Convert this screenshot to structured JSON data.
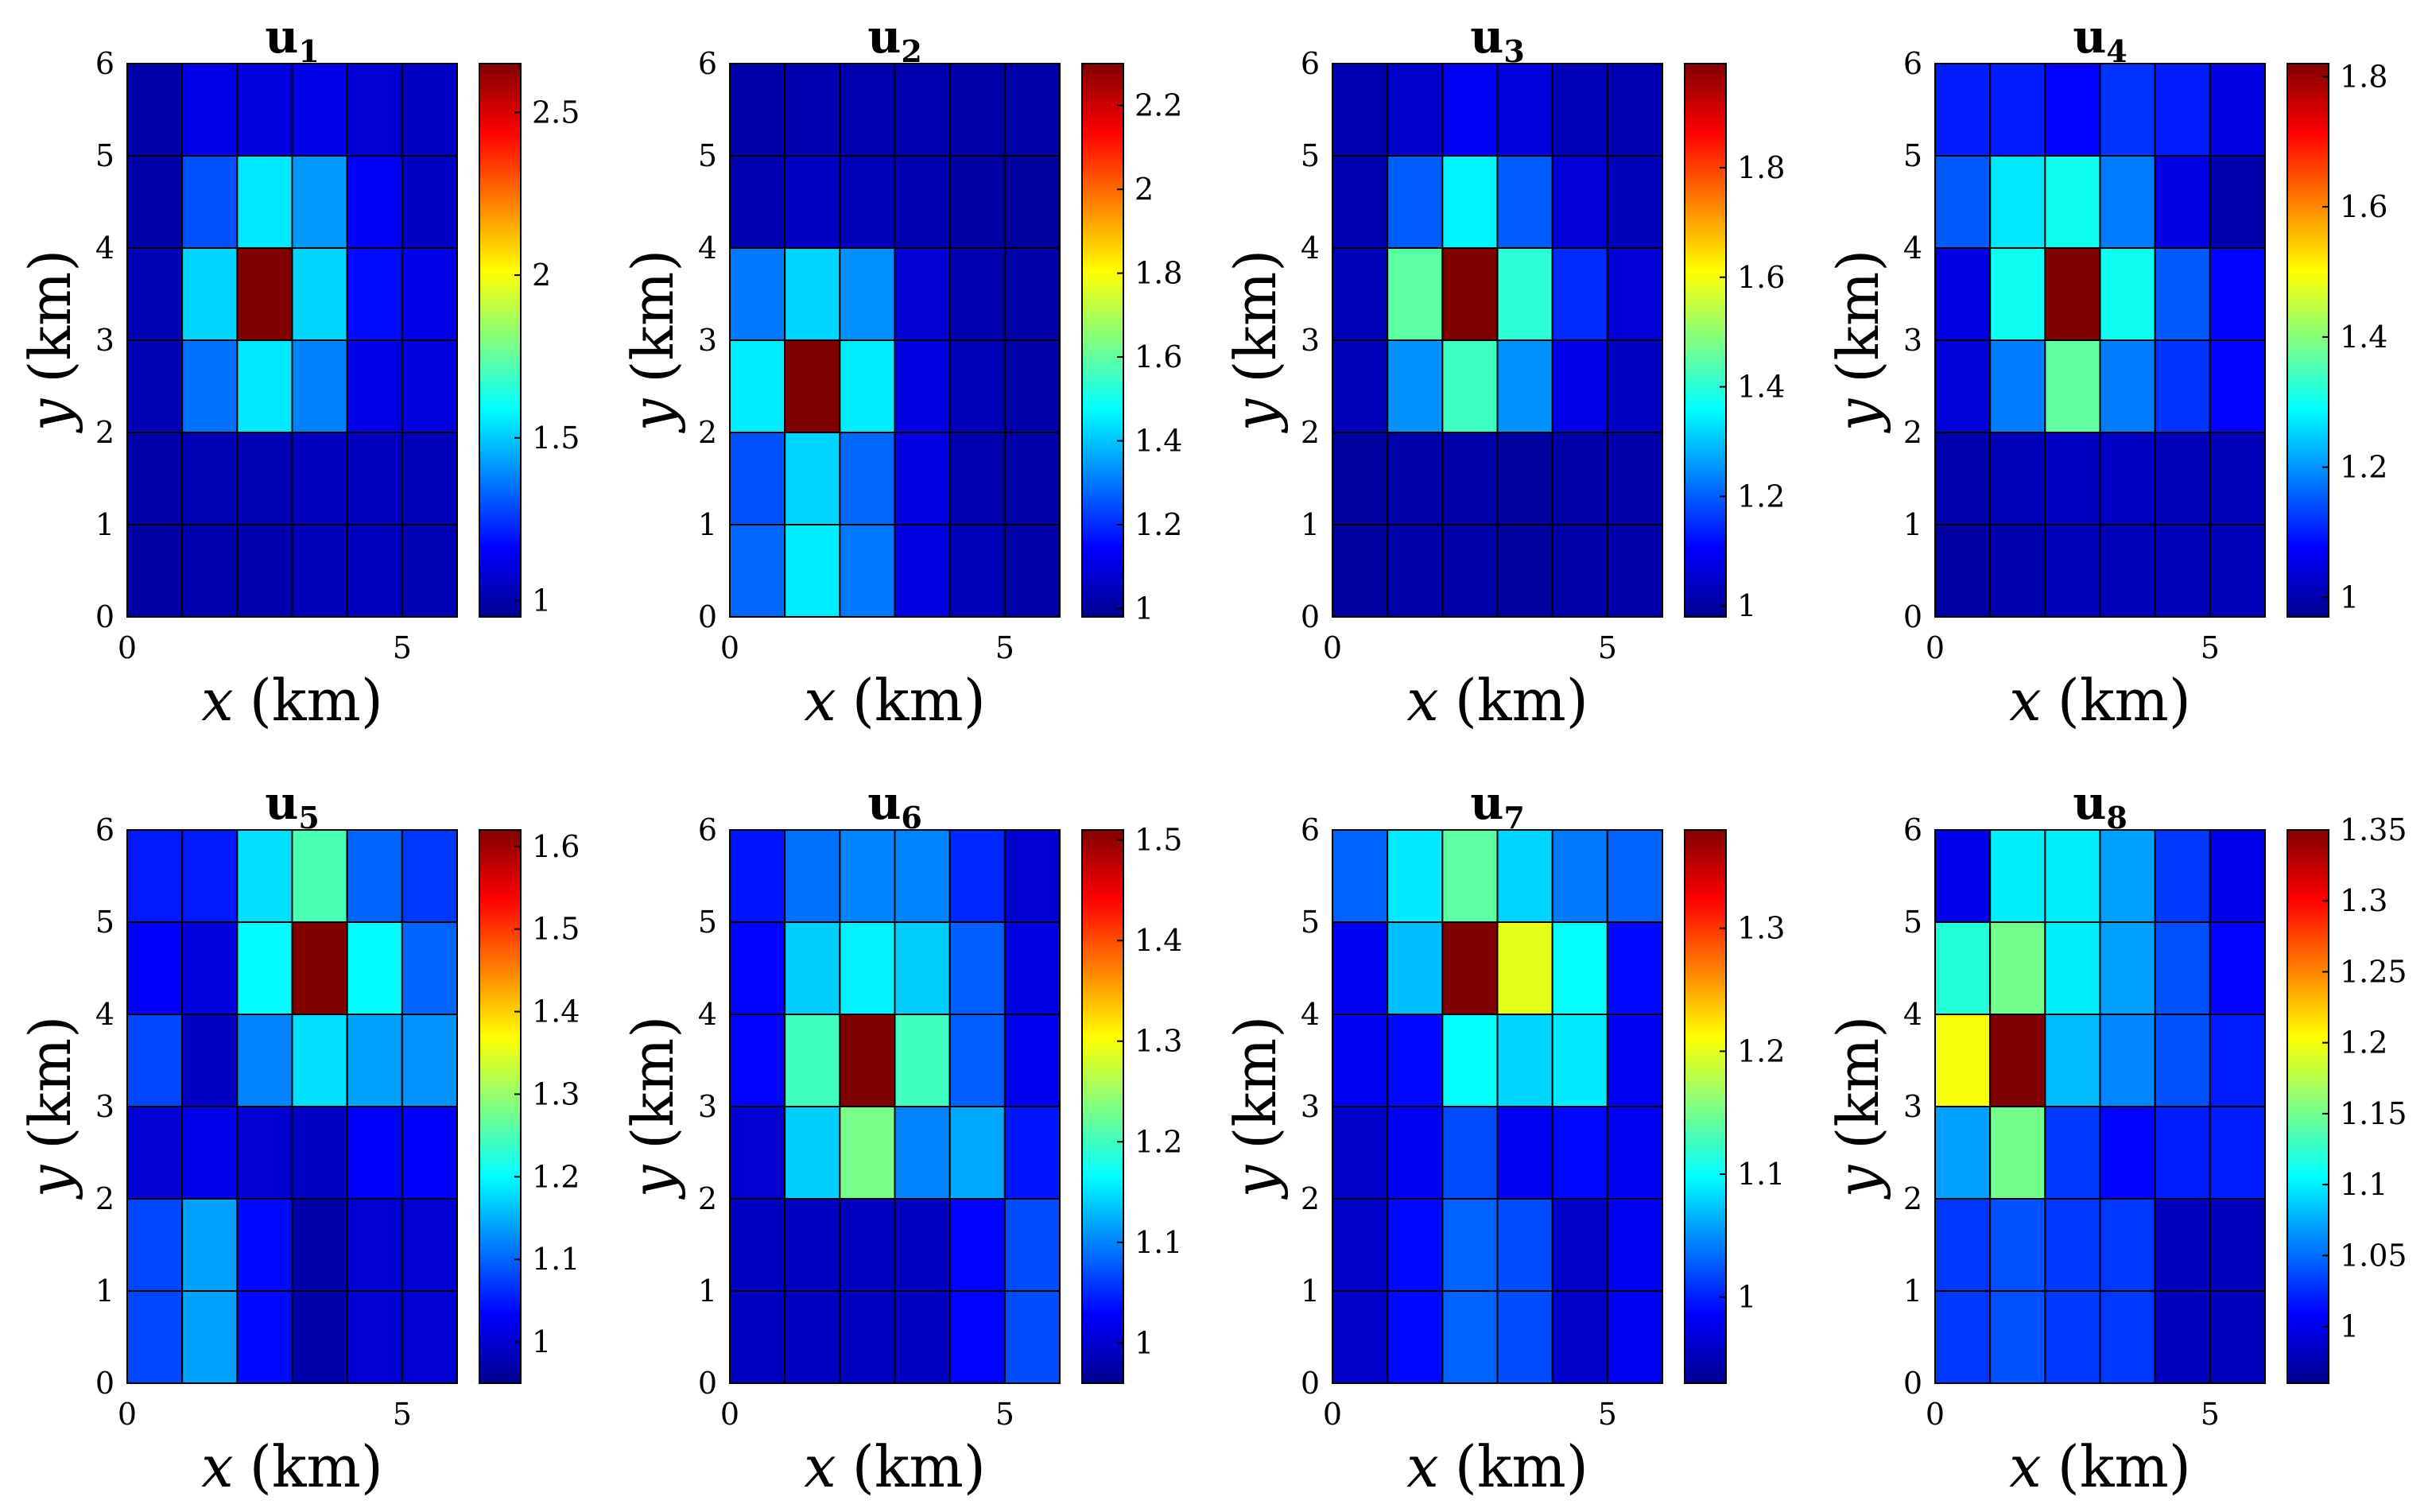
{
  "colormap": "jet",
  "colormap_stops": [
    "#00008f",
    "#0000ff",
    "#007fff",
    "#00ffff",
    "#80ff80",
    "#ffff00",
    "#ff7f00",
    "#ff0000",
    "#800000"
  ],
  "chart_data": [
    {
      "type": "heatmap",
      "title": "u",
      "title_sub": "1",
      "xlabel": "x",
      "ylabel": "y",
      "axis_unit": "(km)",
      "xlim": [
        0,
        6
      ],
      "ylim": [
        0,
        6
      ],
      "xticks": [
        "0",
        "5"
      ],
      "yticks": [
        "0",
        "1",
        "2",
        "3",
        "4",
        "5",
        "6"
      ],
      "clim": [
        0.95,
        2.65
      ],
      "cticks": [
        "1",
        "1.5",
        "2",
        "2.5"
      ],
      "grid_rows_top_to_bottom": [
        [
          1.0,
          1.12,
          1.1,
          1.12,
          1.08,
          1.05
        ],
        [
          1.0,
          1.3,
          1.55,
          1.42,
          1.15,
          1.05
        ],
        [
          1.02,
          1.52,
          2.65,
          1.52,
          1.18,
          1.12
        ],
        [
          1.02,
          1.35,
          1.55,
          1.38,
          1.12,
          1.1
        ],
        [
          1.0,
          1.02,
          1.02,
          1.04,
          1.04,
          1.03
        ],
        [
          0.99,
          1.01,
          1.01,
          1.03,
          1.04,
          1.02
        ]
      ]
    },
    {
      "type": "heatmap",
      "title": "u",
      "title_sub": "2",
      "xlabel": "x",
      "ylabel": "y",
      "axis_unit": "(km)",
      "xlim": [
        0,
        6
      ],
      "ylim": [
        0,
        6
      ],
      "xticks": [
        "0",
        "5"
      ],
      "yticks": [
        "0",
        "1",
        "2",
        "3",
        "4",
        "5",
        "6"
      ],
      "clim": [
        0.98,
        2.3
      ],
      "cticks": [
        "1",
        "1.2",
        "1.4",
        "1.6",
        "1.8",
        "2",
        "2.2"
      ],
      "grid_rows_top_to_bottom": [
        [
          1.02,
          1.03,
          1.03,
          1.03,
          1.02,
          1.02
        ],
        [
          1.03,
          1.06,
          1.04,
          1.03,
          1.01,
          1.0
        ],
        [
          1.3,
          1.42,
          1.33,
          1.08,
          1.03,
          1.02
        ],
        [
          1.45,
          2.3,
          1.45,
          1.1,
          1.04,
          1.02
        ],
        [
          1.25,
          1.42,
          1.28,
          1.1,
          1.03,
          1.02
        ],
        [
          1.28,
          1.45,
          1.3,
          1.1,
          1.04,
          1.02
        ]
      ]
    },
    {
      "type": "heatmap",
      "title": "u",
      "title_sub": "3",
      "xlabel": "x",
      "ylabel": "y",
      "axis_unit": "(km)",
      "xlim": [
        0,
        6
      ],
      "ylim": [
        0,
        6
      ],
      "xticks": [
        "0",
        "5"
      ],
      "yticks": [
        "0",
        "1",
        "2",
        "3",
        "4",
        "5",
        "6"
      ],
      "clim": [
        0.98,
        1.99
      ],
      "cticks": [
        "1",
        "1.2",
        "1.4",
        "1.6",
        "1.8"
      ],
      "grid_rows_top_to_bottom": [
        [
          1.02,
          1.05,
          1.1,
          1.07,
          1.03,
          1.02
        ],
        [
          1.02,
          1.2,
          1.35,
          1.2,
          1.06,
          1.03
        ],
        [
          1.03,
          1.45,
          1.99,
          1.4,
          1.15,
          1.06
        ],
        [
          1.03,
          1.25,
          1.42,
          1.25,
          1.08,
          1.04
        ],
        [
          1.0,
          1.01,
          1.01,
          1.0,
          1.01,
          1.01
        ],
        [
          1.0,
          1.01,
          1.01,
          1.0,
          1.01,
          1.01
        ]
      ]
    },
    {
      "type": "heatmap",
      "title": "u",
      "title_sub": "4",
      "xlabel": "x",
      "ylabel": "y",
      "axis_unit": "(km)",
      "xlim": [
        0,
        6
      ],
      "ylim": [
        0,
        6
      ],
      "xticks": [
        "0",
        "5"
      ],
      "yticks": [
        "0",
        "1",
        "2",
        "3",
        "4",
        "5",
        "6"
      ],
      "clim": [
        0.97,
        1.82
      ],
      "cticks": [
        "1",
        "1.2",
        "1.4",
        "1.6",
        "1.8"
      ],
      "grid_rows_top_to_bottom": [
        [
          1.1,
          1.1,
          1.08,
          1.12,
          1.1,
          1.05
        ],
        [
          1.15,
          1.27,
          1.3,
          1.18,
          1.05,
          1.0
        ],
        [
          1.05,
          1.3,
          1.82,
          1.3,
          1.15,
          1.08
        ],
        [
          1.04,
          1.18,
          1.37,
          1.18,
          1.12,
          1.08
        ],
        [
          1.0,
          1.01,
          1.02,
          1.02,
          1.01,
          1.01
        ],
        [
          0.99,
          1.0,
          1.01,
          1.01,
          1.01,
          1.01
        ]
      ]
    },
    {
      "type": "heatmap",
      "title": "u",
      "title_sub": "5",
      "xlabel": "x",
      "ylabel": "y",
      "axis_unit": "(km)",
      "xlim": [
        0,
        6
      ],
      "ylim": [
        0,
        6
      ],
      "xticks": [
        "0",
        "5"
      ],
      "yticks": [
        "0",
        "1",
        "2",
        "3",
        "4",
        "5",
        "6"
      ],
      "clim": [
        0.95,
        1.62
      ],
      "cticks": [
        "1",
        "1.1",
        "1.2",
        "1.3",
        "1.4",
        "1.5",
        "1.6"
      ],
      "grid_rows_top_to_bottom": [
        [
          1.05,
          1.05,
          1.18,
          1.25,
          1.1,
          1.07
        ],
        [
          1.03,
          1.01,
          1.2,
          1.62,
          1.2,
          1.1
        ],
        [
          1.08,
          0.99,
          1.12,
          1.18,
          1.14,
          1.13
        ],
        [
          1.0,
          1.02,
          1.0,
          0.99,
          1.03,
          1.03
        ],
        [
          1.08,
          1.14,
          1.04,
          0.97,
          1.0,
          1.0
        ],
        [
          1.08,
          1.14,
          1.04,
          0.97,
          1.0,
          1.0
        ]
      ]
    },
    {
      "type": "heatmap",
      "title": "u",
      "title_sub": "6",
      "xlabel": "x",
      "ylabel": "y",
      "axis_unit": "(km)",
      "xlim": [
        0,
        6
      ],
      "ylim": [
        0,
        6
      ],
      "xticks": [
        "0",
        "5"
      ],
      "yticks": [
        "0",
        "1",
        "2",
        "3",
        "4",
        "5",
        "6"
      ],
      "clim": [
        0.96,
        1.51
      ],
      "cticks": [
        "1",
        "1.1",
        "1.2",
        "1.3",
        "1.4",
        "1.5"
      ],
      "grid_rows_top_to_bottom": [
        [
          1.04,
          1.09,
          1.1,
          1.1,
          1.05,
          1.0
        ],
        [
          1.03,
          1.14,
          1.16,
          1.14,
          1.08,
          1.01
        ],
        [
          1.03,
          1.2,
          1.51,
          1.2,
          1.08,
          1.02
        ],
        [
          1.0,
          1.14,
          1.23,
          1.1,
          1.12,
          1.04
        ],
        [
          0.99,
          0.99,
          0.99,
          0.99,
          1.03,
          1.07
        ],
        [
          0.99,
          0.99,
          0.99,
          0.99,
          1.03,
          1.07
        ]
      ]
    },
    {
      "type": "heatmap",
      "title": "u",
      "title_sub": "7",
      "xlabel": "x",
      "ylabel": "y",
      "axis_unit": "(km)",
      "xlim": [
        0,
        6
      ],
      "ylim": [
        0,
        6
      ],
      "xticks": [
        "0",
        "5"
      ],
      "yticks": [
        "0",
        "1",
        "2",
        "3",
        "4",
        "5",
        "6"
      ],
      "clim": [
        0.93,
        1.38
      ],
      "cticks": [
        "1",
        "1.1",
        "1.2",
        "1.3"
      ],
      "grid_rows_top_to_bottom": [
        [
          1.03,
          1.09,
          1.14,
          1.08,
          1.04,
          1.03
        ],
        [
          0.98,
          1.07,
          1.38,
          1.2,
          1.1,
          0.99
        ],
        [
          0.98,
          0.99,
          1.1,
          1.08,
          1.09,
          0.98
        ],
        [
          0.96,
          0.98,
          1.02,
          0.98,
          0.99,
          0.98
        ],
        [
          0.96,
          0.99,
          1.03,
          1.02,
          0.96,
          0.98
        ],
        [
          0.96,
          0.99,
          1.03,
          1.02,
          0.96,
          0.98
        ]
      ]
    },
    {
      "type": "heatmap",
      "title": "u",
      "title_sub": "8",
      "xlabel": "x",
      "ylabel": "y",
      "axis_unit": "(km)",
      "xlim": [
        0,
        6
      ],
      "ylim": [
        0,
        6
      ],
      "xticks": [
        "0",
        "5"
      ],
      "yticks": [
        "0",
        "1",
        "2",
        "3",
        "4",
        "5",
        "6"
      ],
      "clim": [
        0.96,
        1.35
      ],
      "cticks": [
        "1",
        "1.05",
        "1.1",
        "1.15",
        "1.2",
        "1.25",
        "1.3",
        "1.35"
      ],
      "grid_rows_top_to_bottom": [
        [
          1.0,
          1.1,
          1.1,
          1.07,
          1.03,
          1.0
        ],
        [
          1.12,
          1.15,
          1.1,
          1.07,
          1.04,
          1.01
        ],
        [
          1.2,
          1.35,
          1.08,
          1.06,
          1.04,
          1.02
        ],
        [
          1.07,
          1.15,
          1.03,
          1.01,
          1.02,
          1.02
        ],
        [
          1.03,
          1.04,
          1.03,
          1.03,
          0.98,
          0.98
        ],
        [
          1.03,
          1.04,
          1.03,
          1.03,
          0.98,
          0.98
        ]
      ]
    }
  ]
}
